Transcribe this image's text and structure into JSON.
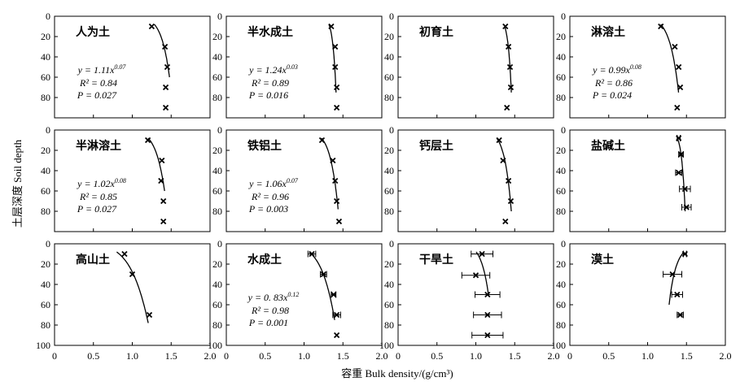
{
  "figure": {
    "ylabel": "土层深度 Soil depth",
    "xlabel": "容重 Bulk density/(g/cm³)",
    "x_ticks": [
      "0",
      "0.5",
      "1.0",
      "1.5",
      "2.0"
    ],
    "y_ticks": [
      "0",
      "20",
      "40",
      "60",
      "80",
      "100"
    ]
  },
  "chart_data": [
    {
      "type": "scatter",
      "title": "人为土",
      "xlim": [
        0,
        2
      ],
      "ylim": [
        100,
        0
      ],
      "points": [
        {
          "x": 1.25,
          "y": 10
        },
        {
          "x": 1.42,
          "y": 30
        },
        {
          "x": 1.45,
          "y": 50
        },
        {
          "x": 1.43,
          "y": 70
        },
        {
          "x": 1.43,
          "y": 90
        }
      ],
      "fit": {
        "a": 1.11,
        "b": 0.07,
        "y_range": [
          8,
          60
        ]
      },
      "equation": "y = 1.11x",
      "exponent": "0.07",
      "r2": "R² = 0.84",
      "p": "P = 0.027"
    },
    {
      "type": "scatter",
      "title": "半水成土",
      "xlim": [
        0,
        2
      ],
      "ylim": [
        100,
        0
      ],
      "points": [
        {
          "x": 1.35,
          "y": 10
        },
        {
          "x": 1.4,
          "y": 30
        },
        {
          "x": 1.4,
          "y": 50
        },
        {
          "x": 1.42,
          "y": 70
        },
        {
          "x": 1.42,
          "y": 90
        }
      ],
      "fit": {
        "a": 1.24,
        "b": 0.03,
        "y_range": [
          8,
          75
        ]
      },
      "equation": "y = 1.24x",
      "exponent": "0.03",
      "r2": "R² = 0.89",
      "p": "P = 0.016"
    },
    {
      "type": "scatter",
      "title": "初育土",
      "xlim": [
        0,
        2
      ],
      "ylim": [
        100,
        0
      ],
      "points": [
        {
          "x": 1.38,
          "y": 10
        },
        {
          "x": 1.42,
          "y": 30
        },
        {
          "x": 1.44,
          "y": 50
        },
        {
          "x": 1.45,
          "y": 70
        },
        {
          "x": 1.4,
          "y": 90
        }
      ],
      "fit": {
        "a": 1.28,
        "b": 0.03,
        "y_range": [
          8,
          75
        ]
      },
      "equation": "",
      "exponent": "",
      "r2": "",
      "p": ""
    },
    {
      "type": "scatter",
      "title": "淋溶土",
      "xlim": [
        0,
        2
      ],
      "ylim": [
        100,
        0
      ],
      "points": [
        {
          "x": 1.17,
          "y": 10
        },
        {
          "x": 1.35,
          "y": 30
        },
        {
          "x": 1.4,
          "y": 50
        },
        {
          "x": 1.42,
          "y": 70
        },
        {
          "x": 1.38,
          "y": 90
        }
      ],
      "fit": {
        "a": 0.99,
        "b": 0.08,
        "y_range": [
          8,
          75
        ]
      },
      "equation": "y = 0.99x",
      "exponent": "0.08",
      "r2": "R² = 0.86",
      "p": "P = 0.024"
    },
    {
      "type": "scatter",
      "title": "半淋溶土",
      "xlim": [
        0,
        2
      ],
      "ylim": [
        100,
        0
      ],
      "points": [
        {
          "x": 1.2,
          "y": 10
        },
        {
          "x": 1.38,
          "y": 30
        },
        {
          "x": 1.37,
          "y": 50
        },
        {
          "x": 1.4,
          "y": 70
        },
        {
          "x": 1.4,
          "y": 90
        }
      ],
      "fit": {
        "a": 1.02,
        "b": 0.08,
        "y_range": [
          8,
          60
        ]
      },
      "equation": "y = 1.02x",
      "exponent": "0.08",
      "r2": "R² = 0.85",
      "p": "P = 0.027"
    },
    {
      "type": "scatter",
      "title": "铁铝土",
      "xlim": [
        0,
        2
      ],
      "ylim": [
        100,
        0
      ],
      "points": [
        {
          "x": 1.23,
          "y": 10
        },
        {
          "x": 1.37,
          "y": 30
        },
        {
          "x": 1.4,
          "y": 50
        },
        {
          "x": 1.42,
          "y": 70
        },
        {
          "x": 1.45,
          "y": 90
        }
      ],
      "fit": {
        "a": 1.06,
        "b": 0.07,
        "y_range": [
          8,
          78
        ]
      },
      "equation": "y = 1.06x",
      "exponent": "0.07",
      "r2": "R² = 0.96",
      "p": "P = 0.003"
    },
    {
      "type": "scatter",
      "title": "钙层土",
      "xlim": [
        0,
        2
      ],
      "ylim": [
        100,
        0
      ],
      "points": [
        {
          "x": 1.3,
          "y": 10
        },
        {
          "x": 1.35,
          "y": 30
        },
        {
          "x": 1.42,
          "y": 50
        },
        {
          "x": 1.45,
          "y": 70
        },
        {
          "x": 1.38,
          "y": 90
        }
      ],
      "fit": {
        "a": 1.12,
        "b": 0.06,
        "y_range": [
          8,
          80
        ]
      },
      "equation": "",
      "exponent": "",
      "r2": "",
      "p": ""
    },
    {
      "type": "scatter",
      "title": "盐碱土",
      "xlim": [
        0,
        2
      ],
      "ylim": [
        100,
        0
      ],
      "points": [
        {
          "x": 1.4,
          "y": 8,
          "xerr": 0.02
        },
        {
          "x": 1.43,
          "y": 24,
          "xerr": 0.03
        },
        {
          "x": 1.4,
          "y": 42,
          "xerr": 0.04
        },
        {
          "x": 1.48,
          "y": 58,
          "xerr": 0.07
        },
        {
          "x": 1.5,
          "y": 76,
          "xerr": 0.06
        }
      ],
      "fit": {
        "a": 1.3,
        "b": 0.03,
        "y_range": [
          8,
          80
        ]
      },
      "equation": "",
      "exponent": "",
      "r2": "",
      "p": ""
    },
    {
      "type": "scatter",
      "title": "高山土",
      "xlim": [
        0,
        2
      ],
      "ylim": [
        100,
        0
      ],
      "points": [
        {
          "x": 0.9,
          "y": 10
        },
        {
          "x": 1.0,
          "y": 30
        },
        {
          "x": 1.22,
          "y": 70
        }
      ],
      "fit": {
        "a": 0.55,
        "b": 0.18,
        "y_range": [
          8,
          78
        ]
      },
      "equation": "",
      "exponent": "",
      "r2": "",
      "p": ""
    },
    {
      "type": "scatter",
      "title": "水成土",
      "xlim": [
        0,
        2
      ],
      "ylim": [
        100,
        0
      ],
      "points": [
        {
          "x": 1.1,
          "y": 10,
          "xerr": 0.05
        },
        {
          "x": 1.25,
          "y": 30,
          "xerr": 0.04
        },
        {
          "x": 1.38,
          "y": 50,
          "xerr": 0.03
        },
        {
          "x": 1.42,
          "y": 70,
          "xerr": 0.05
        },
        {
          "x": 1.42,
          "y": 90
        }
      ],
      "fit": {
        "a": 0.83,
        "b": 0.12,
        "y_range": [
          8,
          75
        ]
      },
      "equation": "y = 0. 83x",
      "exponent": "0.12",
      "r2": "R² = 0.98",
      "p": "P = 0.001"
    },
    {
      "type": "scatter",
      "title": "干旱土",
      "xlim": [
        0,
        2
      ],
      "ylim": [
        100,
        0
      ],
      "points": [
        {
          "x": 1.08,
          "y": 10,
          "xerr": 0.14
        },
        {
          "x": 1.0,
          "y": 31,
          "xerr": 0.18
        },
        {
          "x": 1.15,
          "y": 50,
          "xerr": 0.16
        },
        {
          "x": 1.15,
          "y": 70,
          "xerr": 0.18
        },
        {
          "x": 1.15,
          "y": 90,
          "xerr": 0.2
        }
      ],
      "fit": {
        "a": 0.85,
        "b": 0.08,
        "y_range": [
          8,
          50
        ]
      },
      "equation": "",
      "exponent": "",
      "r2": "",
      "p": ""
    },
    {
      "type": "scatter",
      "title": "漠土",
      "xlim": [
        0,
        2
      ],
      "ylim": [
        100,
        0
      ],
      "points": [
        {
          "x": 1.48,
          "y": 10,
          "xerr": 0.02
        },
        {
          "x": 1.32,
          "y": 30,
          "xerr": 0.12
        },
        {
          "x": 1.38,
          "y": 50,
          "xerr": 0.07
        },
        {
          "x": 1.42,
          "y": 70,
          "xerr": 0.04
        }
      ],
      "fit": {
        "a": 1.7,
        "b": -0.07,
        "y_range": [
          8,
          60
        ]
      },
      "equation": "",
      "exponent": "",
      "r2": "",
      "p": ""
    }
  ]
}
